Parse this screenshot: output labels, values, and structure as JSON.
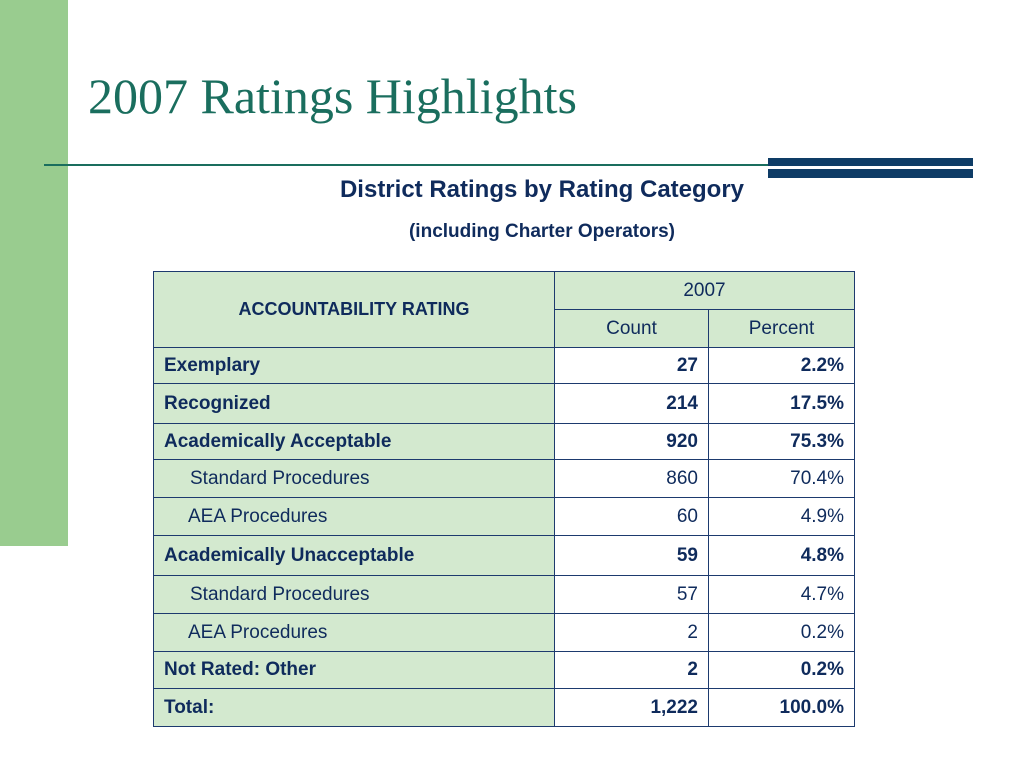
{
  "slide": {
    "title": "2007 Ratings Highlights",
    "subtitle": "District Ratings by Rating Category",
    "note": "(including Charter Operators)"
  },
  "table": {
    "header": {
      "rating_label": "ACCOUNTABILITY RATING",
      "year": "2007",
      "count_label": "Count",
      "percent_label": "Percent"
    },
    "rows": [
      {
        "label": "Exemplary",
        "count": "27",
        "percent": "2.2%",
        "level": "major"
      },
      {
        "label": "Recognized",
        "count": "214",
        "percent": "17.5%",
        "level": "major"
      },
      {
        "label": "Academically Acceptable",
        "count": "920",
        "percent": "75.3%",
        "level": "major"
      },
      {
        "label": "Standard Procedures",
        "count": "860",
        "percent": "70.4%",
        "level": "minor"
      },
      {
        "label": "AEA Procedures",
        "count": "60",
        "percent": "4.9%",
        "level": "minor"
      },
      {
        "label": "Academically Unacceptable",
        "count": "59",
        "percent": "4.8%",
        "level": "major"
      },
      {
        "label": "Standard Procedures",
        "count": "57",
        "percent": "4.7%",
        "level": "minor"
      },
      {
        "label": "AEA Procedures",
        "count": "2",
        "percent": "0.2%",
        "level": "minor"
      },
      {
        "label": "Not Rated: Other",
        "count": "2",
        "percent": "0.2%",
        "level": "major"
      },
      {
        "label": "Total:",
        "count": "1,222",
        "percent": "100.0%",
        "level": "major"
      }
    ]
  },
  "colors": {
    "accent_green": "#99cc8f",
    "title_teal": "#1a6e5e",
    "navy": "#0e3c66",
    "cell_green": "#d3e9cf"
  }
}
